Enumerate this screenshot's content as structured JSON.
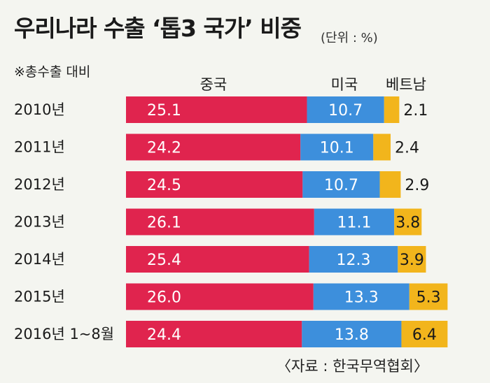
{
  "header": {
    "title": "우리나라 수출 ‘톱3 국가’ 비중",
    "unit": "(단위 : %)",
    "subtitle": "※총수출 대비"
  },
  "source": "〈자료 : 한국무역협회〉",
  "colors": {
    "china": "#e0244e",
    "usa": "#3d8fdc",
    "vietnam": "#f2b51c",
    "label_on_bar": "#ffffff",
    "label_outside": "#1a1a1a"
  },
  "chart_data": {
    "type": "bar",
    "orientation": "horizontal",
    "stacked": true,
    "categories": [
      "2010년",
      "2011년",
      "2012년",
      "2013년",
      "2014년",
      "2015년",
      "2016년 1~8월"
    ],
    "series": [
      {
        "name": "중국",
        "values": [
          25.1,
          24.2,
          24.5,
          26.1,
          25.4,
          26.0,
          24.4
        ]
      },
      {
        "name": "미국",
        "values": [
          10.7,
          10.1,
          10.7,
          11.1,
          12.3,
          13.3,
          13.8
        ]
      },
      {
        "name": "베트남",
        "values": [
          2.1,
          2.4,
          2.9,
          3.8,
          3.9,
          5.3,
          6.4
        ]
      }
    ],
    "data_labels": [
      [
        "25.1",
        "24.2",
        "24.5",
        "26.1",
        "25.4",
        "26.0",
        "24.4"
      ],
      [
        "10.7",
        "10.1",
        "10.7",
        "11.1",
        "12.3",
        "13.3",
        "13.8"
      ],
      [
        "2.1",
        "2.4",
        "2.9",
        "3.8",
        "3.9",
        "5.3",
        "6.4"
      ]
    ],
    "legend_placement": "top",
    "grid": false
  }
}
